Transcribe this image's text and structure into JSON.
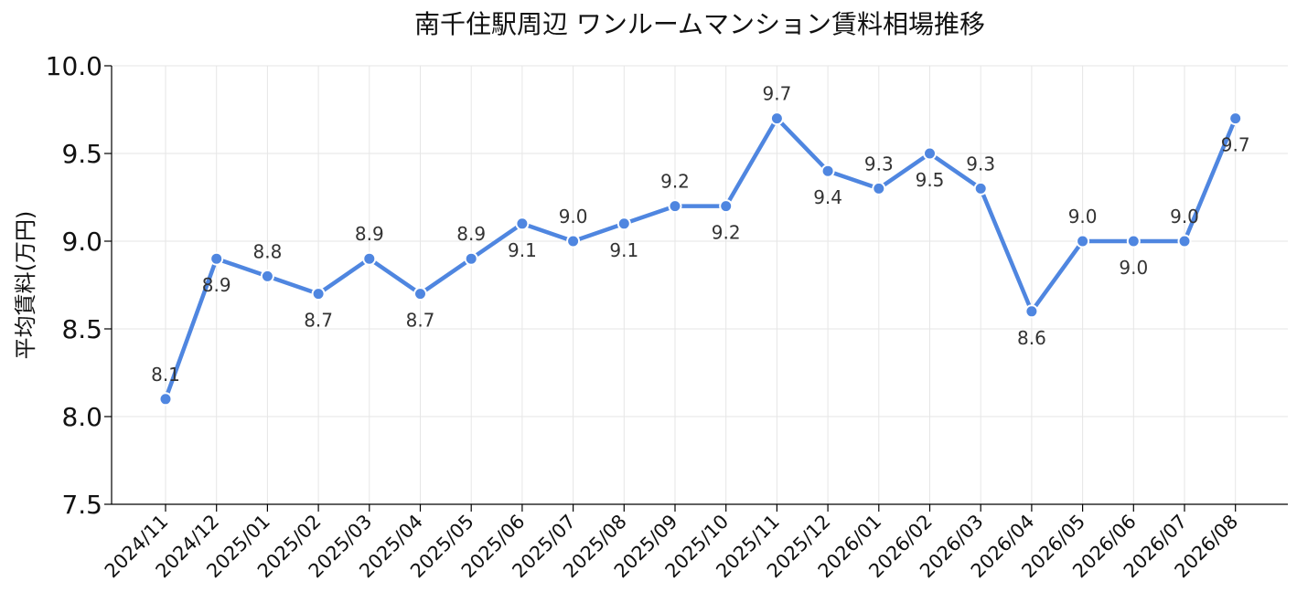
{
  "chart_data": {
    "type": "line",
    "title": "南千住駅周辺 ワンルームマンション賃料相場推移",
    "xlabel": "",
    "ylabel": "平均賃料(万円)",
    "ylim": [
      7.5,
      10.0
    ],
    "yticks": [
      "7.5",
      "8.0",
      "8.5",
      "9.0",
      "9.5",
      "10.0"
    ],
    "grid": true,
    "color": "#4f86e0",
    "categories": [
      "2024/11",
      "2024/12",
      "2025/01",
      "2025/02",
      "2025/03",
      "2025/04",
      "2025/05",
      "2025/06",
      "2025/07",
      "2025/08",
      "2025/09",
      "2025/10",
      "2025/11",
      "2025/12",
      "2026/01",
      "2026/02",
      "2026/03",
      "2026/04",
      "2026/05",
      "2026/06",
      "2026/07",
      "2026/08"
    ],
    "values": [
      8.1,
      8.9,
      8.8,
      8.7,
      8.9,
      8.7,
      8.9,
      9.1,
      9.0,
      9.1,
      9.2,
      9.2,
      9.7,
      9.4,
      9.3,
      9.5,
      9.3,
      8.6,
      9.0,
      9.0,
      9.0,
      9.7
    ],
    "data_labels": [
      "8.1",
      "8.9",
      "8.8",
      "8.7",
      "8.9",
      "8.7",
      "8.9",
      "9.1",
      "9.0",
      "9.1",
      "9.2",
      "9.2",
      "9.7",
      "9.4",
      "9.3",
      "9.5",
      "9.3",
      "8.6",
      "9.0",
      "9.0",
      "9.0",
      "9.7"
    ]
  }
}
